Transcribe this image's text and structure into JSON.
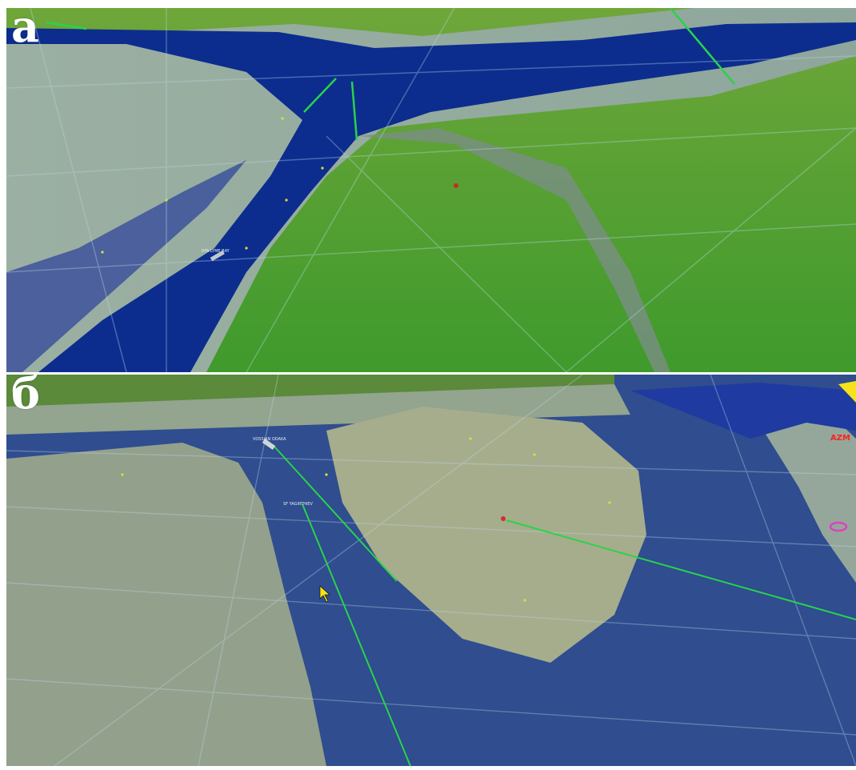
{
  "panels": [
    {
      "id": "a",
      "label": "а"
    },
    {
      "id": "b",
      "label": "б"
    }
  ],
  "panel_a": {
    "ship_label": "RFA LYME BAY"
  },
  "panel_b": {
    "ship_labels": [
      "VOSSIAN ODAKA",
      "SF YAGIRTHIEV"
    ],
    "red_tag": "AZM"
  },
  "colors": {
    "deep_water": "#0b2a8c",
    "shallow_water": "#8fa59a",
    "land": "#4e9a2a",
    "route": "#29d34a",
    "cursor": "#f5e21a",
    "grid": "#bcd8e8"
  }
}
